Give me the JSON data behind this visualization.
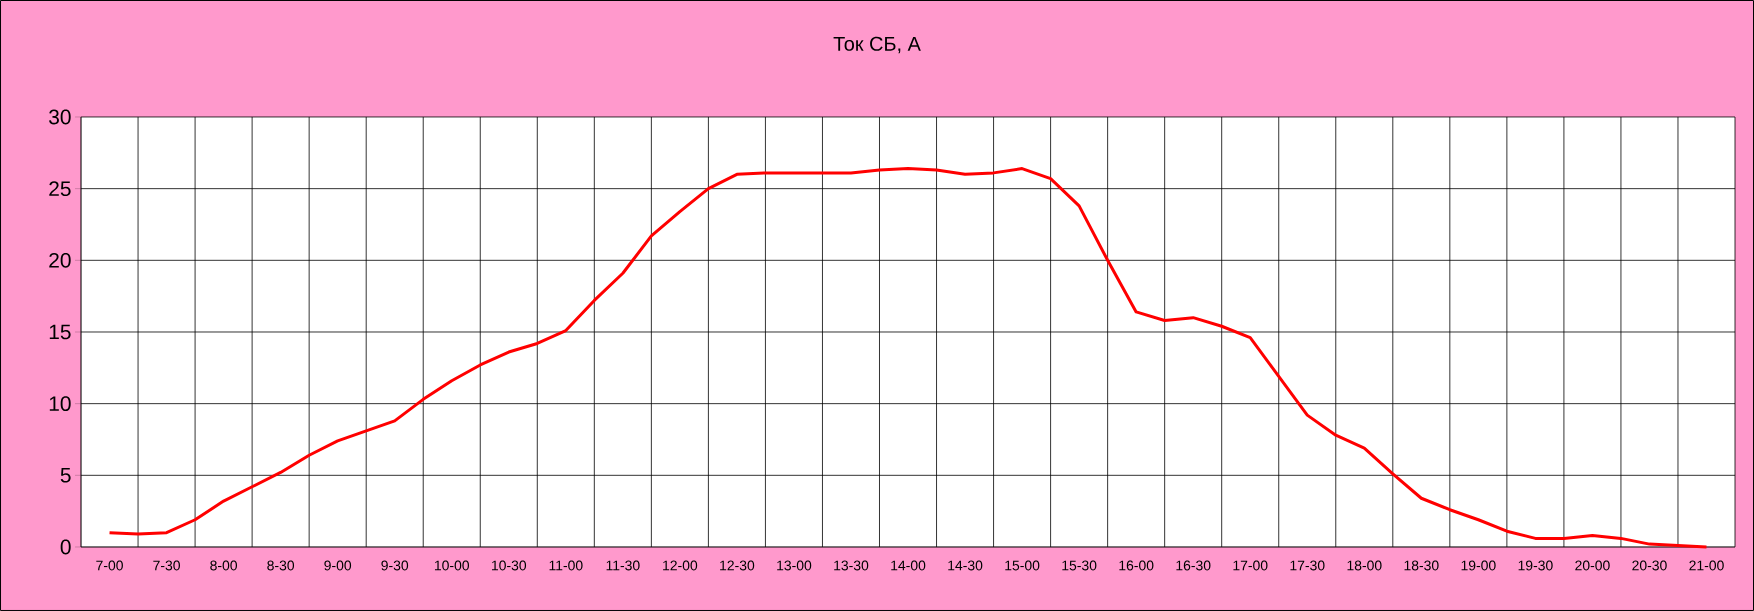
{
  "chart_data": {
    "type": "line",
    "title": "Ток СБ, А",
    "categories": [
      "7-00",
      null,
      "7-30",
      null,
      "8-00",
      null,
      "8-30",
      null,
      "9-00",
      null,
      "9-30",
      null,
      "10-00",
      null,
      "10-30",
      null,
      "11-00",
      null,
      "11-30",
      null,
      "12-00",
      null,
      "12-30",
      null,
      "13-00",
      null,
      "13-30",
      null,
      "14-00",
      null,
      "14-30",
      null,
      "15-00",
      null,
      "15-30",
      null,
      "16-00",
      null,
      "16-30",
      null,
      "17-00",
      null,
      "17-30",
      null,
      "18-00",
      null,
      "18-30",
      null,
      "19-00",
      null,
      "19-30",
      null,
      "20-00",
      null,
      "20-30",
      null,
      "21-00"
    ],
    "values": [
      1.0,
      0.9,
      1.0,
      1.9,
      3.2,
      4.2,
      5.2,
      6.4,
      7.4,
      8.1,
      8.8,
      10.3,
      11.6,
      12.7,
      13.6,
      14.2,
      15.1,
      17.2,
      19.1,
      21.7,
      23.4,
      25.0,
      26.0,
      26.1,
      26.1,
      26.1,
      26.1,
      26.3,
      26.4,
      26.3,
      26.0,
      26.1,
      26.4,
      25.7,
      23.8,
      20.0,
      16.4,
      15.8,
      16.0,
      15.4,
      14.6,
      11.9,
      9.2,
      7.8,
      6.9,
      5.1,
      3.4,
      2.6,
      1.9,
      1.1,
      0.6,
      0.6,
      0.8,
      0.6,
      0.2,
      0.1,
      0.0
    ],
    "color": "#ff0000",
    "marker": "none",
    "line_style": "solid",
    "grid": true,
    "ylim": [
      0,
      30
    ],
    "yticks": [
      0,
      5,
      10,
      15,
      20,
      25,
      30
    ]
  }
}
